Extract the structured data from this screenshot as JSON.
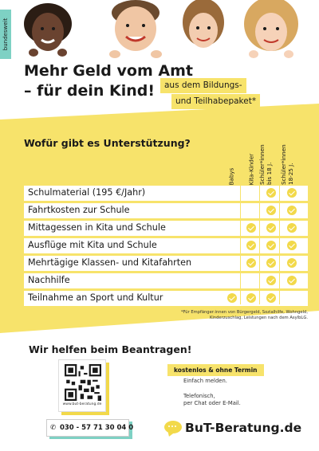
{
  "badge": "bundesweit",
  "title": [
    "Mehr Geld vom Amt",
    "– für dein Kind!"
  ],
  "subtitle": [
    "aus dem Bildungs-",
    "und Teilhabepaket*"
  ],
  "table": {
    "question": "Wofür gibt es Unterstützung?",
    "columns": [
      "Babys",
      "Kita-Kinder",
      "Schüler*innen bis 18 J.",
      "Schüler*innen 18-25 J."
    ],
    "rows": [
      {
        "label": "Schulmaterial (195 €/Jahr)",
        "checks": [
          false,
          false,
          true,
          true
        ]
      },
      {
        "label": "Fahrtkosten zur Schule",
        "checks": [
          false,
          false,
          true,
          true
        ]
      },
      {
        "label": "Mittagessen in Kita und Schule",
        "checks": [
          false,
          true,
          true,
          true
        ]
      },
      {
        "label": "Ausflüge mit Kita und Schule",
        "checks": [
          false,
          true,
          true,
          true
        ]
      },
      {
        "label": "Mehrtägige Klassen- und Kitafahrten",
        "checks": [
          false,
          true,
          true,
          true
        ]
      },
      {
        "label": "Nachhilfe",
        "checks": [
          false,
          false,
          true,
          true
        ]
      },
      {
        "label": "Teilnahme an Sport und Kultur",
        "checks": [
          true,
          true,
          true,
          false
        ]
      }
    ]
  },
  "footnote": [
    "*Für Empfänger:innen von Bürgergeld, Sozialhilfe, Wohngeld,",
    "Kinderzuschlag, Leistungen nach dem AsylbLG."
  ],
  "help": "Wir helfen beim Beantragen!",
  "qr_url": "www.but-beratung.de",
  "phone": "030 - 57 71 30 04 0",
  "tag": "kostenlos & ohne Termin",
  "info": [
    "Einfach melden.",
    "Telefonisch,",
    "per Chat oder E-Mail."
  ],
  "brand": "BuT-Beratung.de",
  "colors": {
    "yellow": "#f7e36b",
    "check_yellow": "#f2d94a",
    "teal": "#7ed1c4"
  },
  "icons": {
    "phone": "phone-icon",
    "check": "check-icon",
    "chat": "chat-bubble-icon"
  }
}
